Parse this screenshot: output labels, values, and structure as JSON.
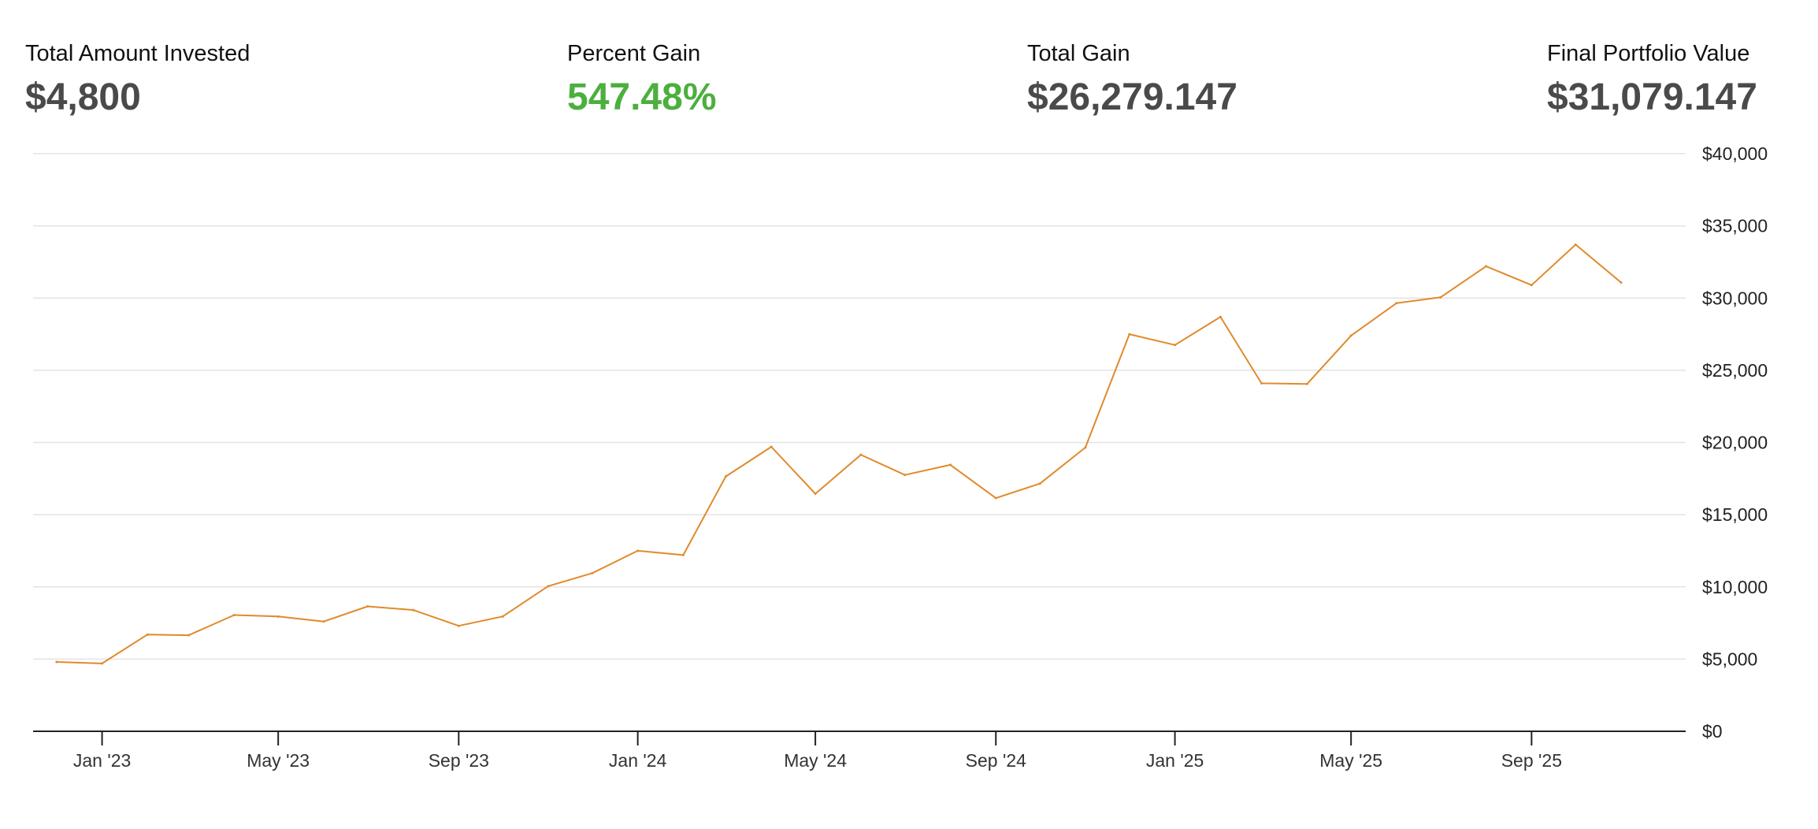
{
  "summary": {
    "invested": {
      "label": "Total Amount Invested",
      "value": "$4,800"
    },
    "percent_gain": {
      "label": "Percent Gain",
      "value": "547.48%"
    },
    "total_gain": {
      "label": "Total Gain",
      "value": "$26,279.147"
    },
    "final_value": {
      "label": "Final Portfolio Value",
      "value": "$31,079.147"
    }
  },
  "colors": {
    "line": "#e08a2c",
    "positive": "#4caf3e",
    "value_text": "#4a4a4a",
    "grid": "#e3e3e3",
    "axis": "#222222"
  },
  "chart_data": {
    "type": "line",
    "x_axis": {
      "type": "date",
      "range": [
        "2022-11-15",
        "2025-12-15"
      ],
      "ticks": [
        {
          "date": "2023-01-01",
          "label": "Jan '23"
        },
        {
          "date": "2023-05-01",
          "label": "May '23"
        },
        {
          "date": "2023-09-01",
          "label": "Sep '23"
        },
        {
          "date": "2024-01-01",
          "label": "Jan '24"
        },
        {
          "date": "2024-05-01",
          "label": "May '24"
        },
        {
          "date": "2024-09-01",
          "label": "Sep '24"
        },
        {
          "date": "2025-01-01",
          "label": "Jan '25"
        },
        {
          "date": "2025-05-01",
          "label": "May '25"
        },
        {
          "date": "2025-09-01",
          "label": "Sep '25"
        }
      ]
    },
    "y_axis": {
      "range": [
        0,
        40000
      ],
      "ticks": [
        {
          "value": 0,
          "label": "$0"
        },
        {
          "value": 5000,
          "label": "$5,000"
        },
        {
          "value": 10000,
          "label": "$10,000"
        },
        {
          "value": 15000,
          "label": "$15,000"
        },
        {
          "value": 20000,
          "label": "$20,000"
        },
        {
          "value": 25000,
          "label": "$25,000"
        },
        {
          "value": 30000,
          "label": "$30,000"
        },
        {
          "value": 35000,
          "label": "$35,000"
        },
        {
          "value": 40000,
          "label": "$40,000"
        }
      ],
      "position": "right"
    },
    "grid": true,
    "series": [
      {
        "points": [
          {
            "x": "2022-12-01",
            "y": 4800
          },
          {
            "x": "2023-01-01",
            "y": 4700
          },
          {
            "x": "2023-02-01",
            "y": 6700
          },
          {
            "x": "2023-03-01",
            "y": 6650
          },
          {
            "x": "2023-04-01",
            "y": 8050
          },
          {
            "x": "2023-05-01",
            "y": 7950
          },
          {
            "x": "2023-06-01",
            "y": 7600
          },
          {
            "x": "2023-07-01",
            "y": 8650
          },
          {
            "x": "2023-08-01",
            "y": 8400
          },
          {
            "x": "2023-09-01",
            "y": 7300
          },
          {
            "x": "2023-10-01",
            "y": 7950
          },
          {
            "x": "2023-11-01",
            "y": 10050
          },
          {
            "x": "2023-12-01",
            "y": 10950
          },
          {
            "x": "2024-01-01",
            "y": 12500
          },
          {
            "x": "2024-02-01",
            "y": 12200
          },
          {
            "x": "2024-03-01",
            "y": 17650
          },
          {
            "x": "2024-04-01",
            "y": 19700
          },
          {
            "x": "2024-05-01",
            "y": 16450
          },
          {
            "x": "2024-06-01",
            "y": 19150
          },
          {
            "x": "2024-07-01",
            "y": 17750
          },
          {
            "x": "2024-08-01",
            "y": 18450
          },
          {
            "x": "2024-09-01",
            "y": 16150
          },
          {
            "x": "2024-10-01",
            "y": 17150
          },
          {
            "x": "2024-11-01",
            "y": 19650
          },
          {
            "x": "2024-12-01",
            "y": 27500
          },
          {
            "x": "2025-01-01",
            "y": 26750
          },
          {
            "x": "2025-02-01",
            "y": 28700
          },
          {
            "x": "2025-03-01",
            "y": 24100
          },
          {
            "x": "2025-04-01",
            "y": 24050
          },
          {
            "x": "2025-05-01",
            "y": 27400
          },
          {
            "x": "2025-06-01",
            "y": 29650
          },
          {
            "x": "2025-07-01",
            "y": 30050
          },
          {
            "x": "2025-08-01",
            "y": 32200
          },
          {
            "x": "2025-09-01",
            "y": 30900
          },
          {
            "x": "2025-10-01",
            "y": 33700
          },
          {
            "x": "2025-11-01",
            "y": 31079
          }
        ]
      }
    ]
  }
}
